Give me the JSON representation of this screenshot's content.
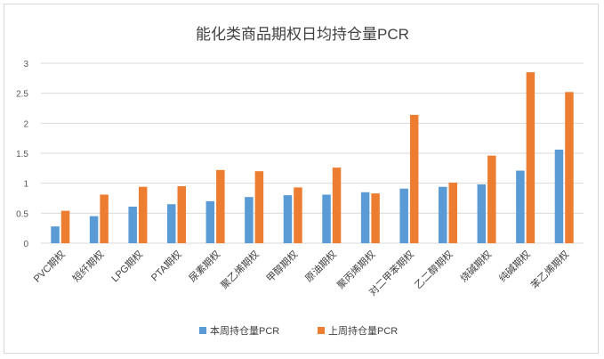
{
  "chart_data": {
    "type": "bar",
    "title": "能化类商品期权日均持仓量PCR",
    "xlabel": "",
    "ylabel": "",
    "ylim": [
      0,
      3
    ],
    "yticks": [
      "0",
      "0.5",
      "1",
      "1.5",
      "2",
      "2.5",
      "3"
    ],
    "grid": true,
    "legend_position": "bottom",
    "categories": [
      "PVC期权",
      "短纤期权",
      "LPG期权",
      "PTA期权",
      "尿素期权",
      "聚乙烯期权",
      "甲醇期权",
      "原油期权",
      "聚丙烯期权",
      "对二甲苯期权",
      "乙二醇期权",
      "烧碱期权",
      "纯碱期权",
      "苯乙烯期权"
    ],
    "series": [
      {
        "name": "本周持仓量PCR",
        "color": "#5b9bd5",
        "values": [
          0.28,
          0.45,
          0.61,
          0.65,
          0.7,
          0.77,
          0.8,
          0.81,
          0.85,
          0.91,
          0.94,
          0.98,
          1.21,
          1.56
        ]
      },
      {
        "name": "上周持仓量PCR",
        "color": "#ed7d31",
        "values": [
          0.54,
          0.81,
          0.94,
          0.95,
          1.22,
          1.2,
          0.93,
          1.26,
          0.83,
          2.14,
          1.01,
          1.46,
          2.85,
          2.52
        ]
      }
    ]
  }
}
